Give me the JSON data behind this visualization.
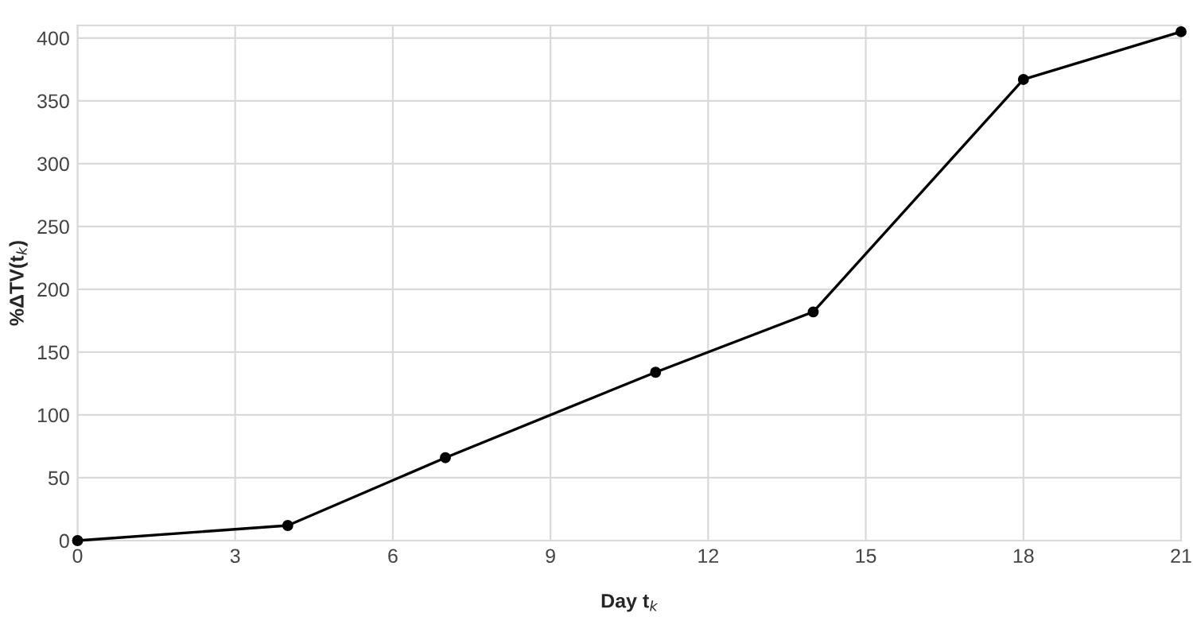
{
  "chart_data": {
    "type": "line",
    "xlabel": "Day t$_{k}$",
    "ylabel": "%ΔTV(t$_{k}$)",
    "x": [
      0,
      4,
      7,
      11,
      14,
      18,
      21
    ],
    "series": [
      {
        "color": "#000000",
        "values": [
          0,
          12,
          66,
          134,
          182,
          367,
          405
        ]
      }
    ],
    "xlim": [
      0,
      21
    ],
    "xticks": [
      0,
      3,
      6,
      9,
      12,
      15,
      18,
      21
    ],
    "ylim": [
      0,
      410
    ],
    "yticks": [
      0,
      50,
      100,
      150,
      200,
      250,
      300,
      350,
      400
    ],
    "grid": true,
    "marker": "circle",
    "line_style": "solid"
  }
}
